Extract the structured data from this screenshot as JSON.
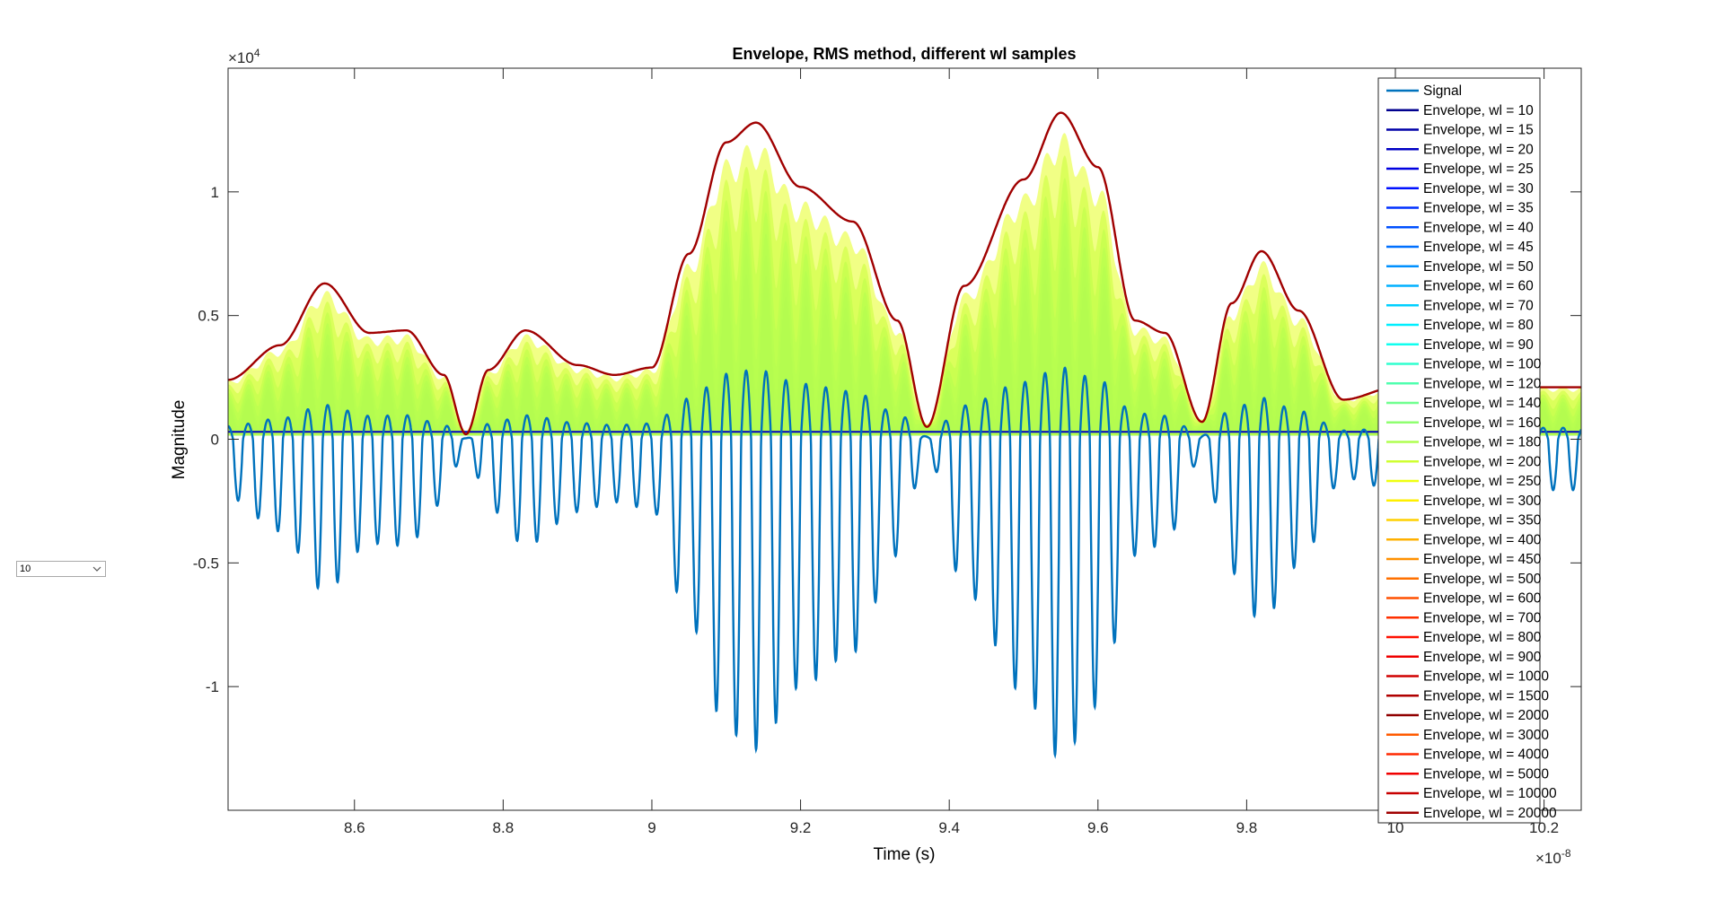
{
  "chart_data": {
    "type": "line",
    "title": "Envelope, RMS method, different wl samples",
    "xlabel": "Time (s)",
    "ylabel": "Magnitude",
    "x_exponent_label": "×10",
    "x_exponent_power": "-8",
    "y_exponent_label": "×10",
    "y_exponent_power": "4",
    "xlim": [
      8.43,
      10.25
    ],
    "ylim": [
      -1.5,
      1.5
    ],
    "x_ticks": [
      "8.6",
      "8.8",
      "9",
      "9.2",
      "9.4",
      "9.6",
      "9.8",
      "10",
      "10.2"
    ],
    "x_tick_values": [
      8.6,
      8.8,
      9.0,
      9.2,
      9.4,
      9.6,
      9.8,
      10.0,
      10.2
    ],
    "y_ticks": [
      "-1",
      "-0.5",
      "0",
      "0.5",
      "1"
    ],
    "y_tick_values": [
      -1,
      -0.5,
      0,
      0.5,
      1
    ],
    "grid": false,
    "legend_position": "top-right",
    "envelope_x": [
      8.43,
      8.5,
      8.56,
      8.62,
      8.67,
      8.72,
      8.75,
      8.78,
      8.83,
      8.9,
      8.95,
      9.0,
      9.05,
      9.1,
      9.14,
      9.2,
      9.27,
      9.33,
      9.37,
      9.42,
      9.5,
      9.55,
      9.6,
      9.65,
      9.69,
      9.74,
      9.78,
      9.82,
      9.87,
      9.93,
      10.0,
      10.1,
      10.25
    ],
    "envelope_y": [
      0.24,
      0.38,
      0.63,
      0.43,
      0.44,
      0.26,
      0.02,
      0.28,
      0.44,
      0.3,
      0.26,
      0.29,
      0.75,
      1.2,
      1.28,
      1.02,
      0.88,
      0.48,
      0.05,
      0.62,
      1.05,
      1.32,
      1.1,
      0.48,
      0.43,
      0.07,
      0.55,
      0.76,
      0.52,
      0.16,
      0.21,
      0.21,
      0.21
    ],
    "series": [
      {
        "name": "Signal",
        "color": "#0072BD"
      },
      {
        "name": "Envelope, wl = 10",
        "color": "#00008F"
      },
      {
        "name": "Envelope, wl = 15",
        "color": "#0000A8"
      },
      {
        "name": "Envelope, wl = 20",
        "color": "#0000C4"
      },
      {
        "name": "Envelope, wl = 25",
        "color": "#0000E0"
      },
      {
        "name": "Envelope, wl = 30",
        "color": "#0010FF"
      },
      {
        "name": "Envelope, wl = 35",
        "color": "#0030FF"
      },
      {
        "name": "Envelope, wl = 40",
        "color": "#0050FF"
      },
      {
        "name": "Envelope, wl = 45",
        "color": "#0070FF"
      },
      {
        "name": "Envelope, wl = 50",
        "color": "#0090FF"
      },
      {
        "name": "Envelope, wl = 60",
        "color": "#00B0FF"
      },
      {
        "name": "Envelope, wl = 70",
        "color": "#00D0FF"
      },
      {
        "name": "Envelope, wl = 80",
        "color": "#00EFFF"
      },
      {
        "name": "Envelope, wl = 90",
        "color": "#10FFEF"
      },
      {
        "name": "Envelope, wl = 100",
        "color": "#30FFCF"
      },
      {
        "name": "Envelope, wl = 120",
        "color": "#50FFAF"
      },
      {
        "name": "Envelope, wl = 140",
        "color": "#70FF8F"
      },
      {
        "name": "Envelope, wl = 160",
        "color": "#8FFF70"
      },
      {
        "name": "Envelope, wl = 180",
        "color": "#AFFF50"
      },
      {
        "name": "Envelope, wl = 200",
        "color": "#CFFF30"
      },
      {
        "name": "Envelope, wl = 250",
        "color": "#EFFF10"
      },
      {
        "name": "Envelope, wl = 300",
        "color": "#FFEF00"
      },
      {
        "name": "Envelope, wl = 350",
        "color": "#FFD000"
      },
      {
        "name": "Envelope, wl = 400",
        "color": "#FFB000"
      },
      {
        "name": "Envelope, wl = 450",
        "color": "#FF9000"
      },
      {
        "name": "Envelope, wl = 500",
        "color": "#FF7000"
      },
      {
        "name": "Envelope, wl = 600",
        "color": "#FF5000"
      },
      {
        "name": "Envelope, wl = 700",
        "color": "#FF3000"
      },
      {
        "name": "Envelope, wl = 800",
        "color": "#FF1000"
      },
      {
        "name": "Envelope, wl = 900",
        "color": "#EF0000"
      },
      {
        "name": "Envelope, wl = 1000",
        "color": "#D00000"
      },
      {
        "name": "Envelope, wl = 1500",
        "color": "#B00000"
      },
      {
        "name": "Envelope, wl = 2000",
        "color": "#900000"
      },
      {
        "name": "Envelope, wl = 3000",
        "color": "#FF5A00"
      },
      {
        "name": "Envelope, wl = 4000",
        "color": "#FF2800"
      },
      {
        "name": "Envelope, wl = 5000",
        "color": "#F00000"
      },
      {
        "name": "Envelope, wl = 10000",
        "color": "#C80000"
      },
      {
        "name": "Envelope, wl = 20000",
        "color": "#A00000"
      }
    ]
  },
  "control": {
    "dropdown_value": "10"
  }
}
